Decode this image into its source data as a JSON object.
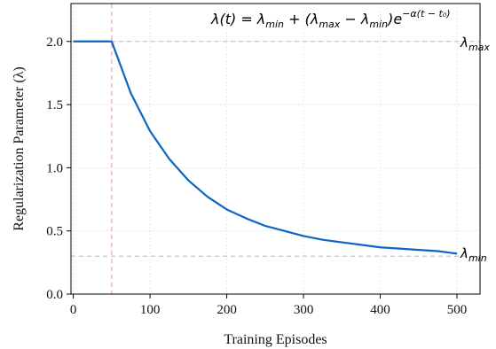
{
  "chart_data": {
    "type": "line",
    "title": "",
    "formula": {
      "lhs": "λ(t) = λ",
      "min1": "min",
      "plus": " + (λ",
      "max": "max",
      "minus": " − λ",
      "min2": "min",
      "paren": ")e",
      "exponent": "−α(t − t₀)"
    },
    "xlabel": "Training Episodes",
    "ylabel": "Regularization Parameter (λ)",
    "xlim": [
      -3,
      530
    ],
    "ylim": [
      0.0,
      2.3
    ],
    "xticks": [
      0,
      100,
      200,
      300,
      400,
      500
    ],
    "yticks": [
      0.0,
      0.5,
      1.0,
      1.5,
      2.0
    ],
    "xtick_labels": [
      "0",
      "100",
      "200",
      "300",
      "400",
      "500"
    ],
    "ytick_labels": [
      "0.0",
      "0.5",
      "1.0",
      "1.5",
      "2.0"
    ],
    "grid": true,
    "series": [
      {
        "color": "#0b66c3",
        "x": [
          0,
          25,
          50,
          75,
          100,
          125,
          150,
          175,
          200,
          225,
          250,
          275,
          300,
          325,
          350,
          375,
          400,
          425,
          450,
          475,
          500
        ],
        "y": [
          2.0,
          2.0,
          2.0,
          1.59,
          1.29,
          1.07,
          0.9,
          0.77,
          0.67,
          0.6,
          0.54,
          0.5,
          0.46,
          0.43,
          0.41,
          0.39,
          0.37,
          0.36,
          0.35,
          0.34,
          0.32
        ]
      }
    ],
    "reference_lines": [
      {
        "orientation": "horizontal",
        "value": 2.0,
        "color": "#c8c8c8",
        "style": "dashed"
      },
      {
        "orientation": "horizontal",
        "value": 0.3,
        "color": "#c8c8c8",
        "style": "dashed"
      },
      {
        "orientation": "vertical",
        "value": 50,
        "color": "#f3b4b4",
        "style": "dashed"
      }
    ],
    "annotations": {
      "lambda_max": {
        "base": "λ",
        "sub": "max"
      },
      "lambda_min": {
        "base": "λ",
        "sub": "min"
      }
    }
  }
}
